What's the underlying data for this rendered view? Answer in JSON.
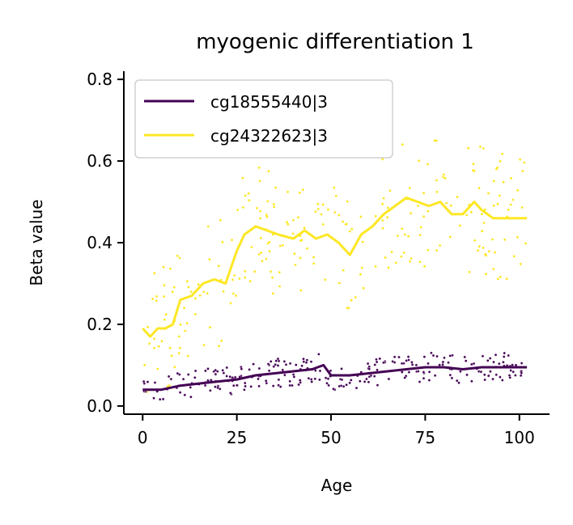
{
  "chart_data": {
    "type": "line",
    "title": "myogenic differentiation 1",
    "xlabel": "Age",
    "ylabel": "Beta value",
    "xlim": [
      -5,
      108
    ],
    "ylim": [
      -0.02,
      0.82
    ],
    "xticks": [
      0,
      25,
      50,
      75,
      100
    ],
    "yticks": [
      0.0,
      0.2,
      0.4,
      0.6,
      0.8
    ],
    "xtick_labels": [
      "0",
      "25",
      "50",
      "75",
      "100"
    ],
    "ytick_labels": [
      "0.0",
      "0.2",
      "0.4",
      "0.6",
      "0.8"
    ],
    "grid": false,
    "legend_position": "top-left",
    "series": [
      {
        "name": "cg18555440|3",
        "color": "#440154",
        "trend": {
          "x": [
            0,
            5,
            10,
            15,
            20,
            25,
            30,
            35,
            40,
            45,
            48,
            50,
            55,
            60,
            65,
            70,
            75,
            80,
            85,
            90,
            95,
            102
          ],
          "y": [
            0.04,
            0.04,
            0.05,
            0.055,
            0.06,
            0.065,
            0.075,
            0.08,
            0.085,
            0.09,
            0.1,
            0.075,
            0.075,
            0.08,
            0.085,
            0.09,
            0.095,
            0.095,
            0.09,
            0.095,
            0.095,
            0.095
          ]
        },
        "scatter_center": [
          0.04,
          0.04,
          0.05,
          0.055,
          0.06,
          0.065,
          0.075,
          0.08,
          0.085,
          0.09,
          0.1,
          0.075,
          0.075,
          0.08,
          0.085,
          0.09,
          0.095,
          0.095,
          0.09,
          0.095,
          0.095,
          0.095
        ],
        "scatter_spread": 0.035
      },
      {
        "name": "cg24322623|3",
        "color": "#fde725",
        "trend": {
          "x": [
            0,
            2,
            4,
            6,
            8,
            10,
            13,
            16,
            19,
            22,
            25,
            27,
            30,
            33,
            36,
            40,
            43,
            46,
            49,
            52,
            55,
            58,
            61,
            64,
            67,
            70,
            73,
            76,
            79,
            82,
            85,
            88,
            90,
            93,
            96,
            102
          ],
          "y": [
            0.19,
            0.17,
            0.19,
            0.19,
            0.2,
            0.26,
            0.27,
            0.3,
            0.31,
            0.3,
            0.38,
            0.42,
            0.44,
            0.43,
            0.42,
            0.41,
            0.43,
            0.41,
            0.42,
            0.4,
            0.37,
            0.42,
            0.44,
            0.47,
            0.49,
            0.51,
            0.5,
            0.49,
            0.5,
            0.47,
            0.47,
            0.5,
            0.48,
            0.46,
            0.46,
            0.46
          ]
        },
        "scatter_center": [
          0.19,
          0.17,
          0.19,
          0.19,
          0.2,
          0.26,
          0.27,
          0.3,
          0.31,
          0.3,
          0.38,
          0.42,
          0.44,
          0.43,
          0.42,
          0.41,
          0.43,
          0.41,
          0.42,
          0.4,
          0.37,
          0.42,
          0.44,
          0.47,
          0.49,
          0.51,
          0.5,
          0.49,
          0.5,
          0.47,
          0.47,
          0.5,
          0.48,
          0.46,
          0.46,
          0.46
        ],
        "scatter_spread": 0.16
      }
    ]
  }
}
